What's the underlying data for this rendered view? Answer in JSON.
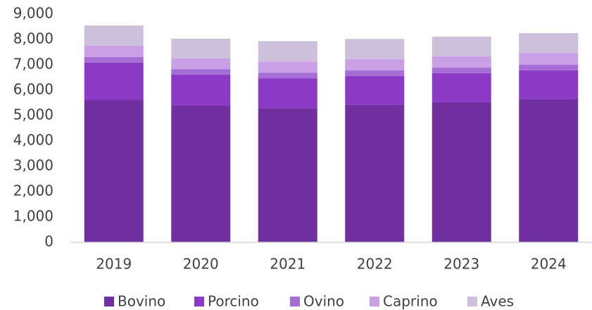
{
  "chart_data": {
    "type": "bar",
    "stacked": true,
    "categories": [
      "2019",
      "2020",
      "2021",
      "2022",
      "2023",
      "2024"
    ],
    "series": [
      {
        "name": "Bovino",
        "color": "#7030a0",
        "values": [
          5610,
          5390,
          5300,
          5420,
          5530,
          5640
        ]
      },
      {
        "name": "Porcino",
        "color": "#8b3ac6",
        "values": [
          1480,
          1220,
          1170,
          1140,
          1140,
          1140
        ]
      },
      {
        "name": "Ovino",
        "color": "#a66dd4",
        "values": [
          220,
          220,
          220,
          220,
          220,
          220
        ]
      },
      {
        "name": "Caprino",
        "color": "#c9a0e6",
        "values": [
          440,
          420,
          440,
          440,
          440,
          470
        ]
      },
      {
        "name": "Aves",
        "color": "#ccc0da",
        "values": [
          800,
          780,
          800,
          800,
          780,
          780
        ]
      }
    ],
    "ylim": [
      0,
      9000
    ],
    "yticks": [
      0,
      {
        "value": 1000,
        "label": "1,000"
      },
      {
        "value": 2000,
        "label": "2,000"
      },
      {
        "value": 3000,
        "label": "3,000"
      },
      {
        "value": 4000,
        "label": "4,000"
      },
      {
        "value": 5000,
        "label": "5,000"
      },
      {
        "value": 6000,
        "label": "6,000"
      },
      {
        "value": 7000,
        "label": "7,000"
      },
      {
        "value": 8000,
        "label": "8,000"
      },
      {
        "value": 9000,
        "label": "9,000"
      }
    ],
    "grid": false,
    "legend": "bottom"
  }
}
